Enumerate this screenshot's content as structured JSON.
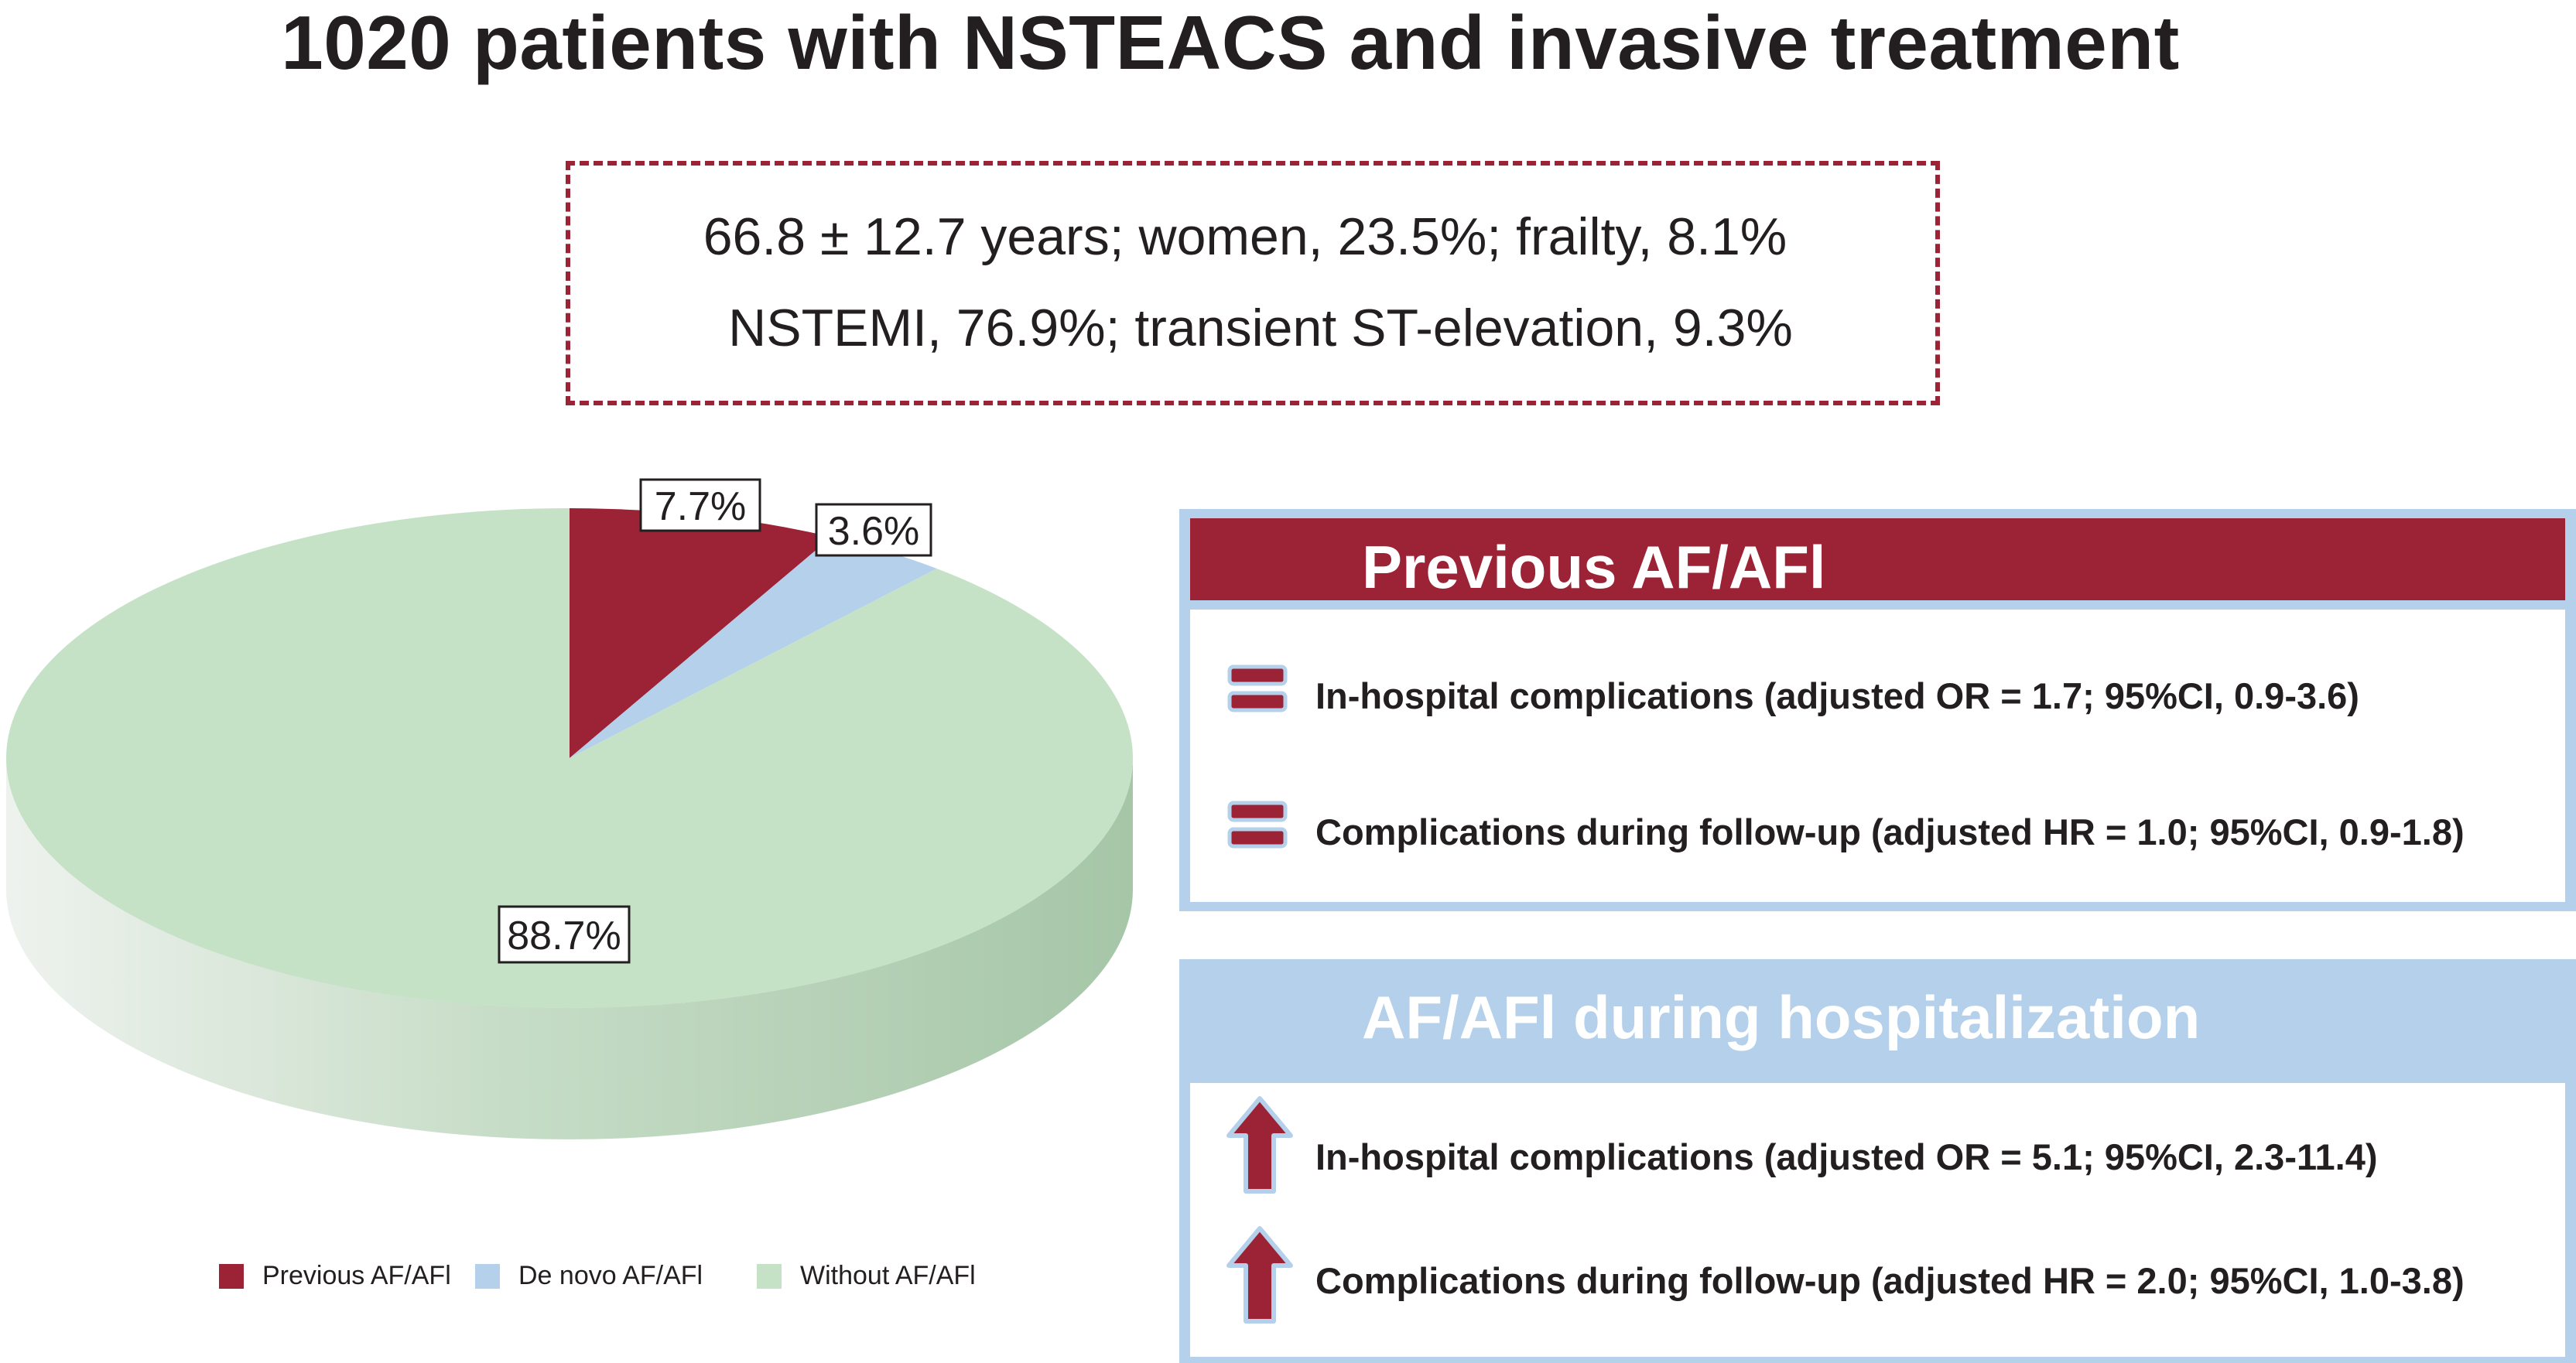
{
  "title": "1020 patients with NSTEACS and invasive treatment",
  "stats": {
    "line1": "66.8 ± 12.7 years; women, 23.5%; frailty, 8.1%",
    "line2": "NSTEMI, 76.9%; transient ST-elevation, 9.3%"
  },
  "chart_data": {
    "type": "pie",
    "title": "",
    "unit": "%",
    "slices": [
      {
        "label": "Previous AF/AFl",
        "value": 7.7,
        "display": "7.7%",
        "color": "#9b2335"
      },
      {
        "label": "De novo AF/AFl",
        "value": 3.6,
        "display": "3.6%",
        "color": "#b4d0ea"
      },
      {
        "label": "Without AF/AFl",
        "value": 88.7,
        "display": "88.7%",
        "color": "#c5e2c7"
      }
    ],
    "legend_position": "bottom"
  },
  "panels": [
    {
      "title": "Previous AF/AFl",
      "items": [
        {
          "icon": "equals-icon",
          "text": "In-hospital complications (adjusted OR = 1.7; 95%CI, 0.9-3.6)"
        },
        {
          "icon": "equals-icon",
          "text": "Complications during follow-up (adjusted HR = 1.0; 95%CI, 0.9-1.8)"
        }
      ]
    },
    {
      "title": "AF/AFl during hospitalization",
      "items": [
        {
          "icon": "arrow-up-icon",
          "text": "In-hospital complications (adjusted OR = 5.1; 95%CI, 2.3-11.4)"
        },
        {
          "icon": "arrow-up-icon",
          "text": "Complications during follow-up (adjusted HR = 2.0; 95%CI, 1.0-3.8)"
        }
      ]
    }
  ],
  "colors": {
    "accent_red": "#9b2335",
    "accent_blue": "#b4d0ea",
    "accent_green": "#c5e2c7"
  }
}
